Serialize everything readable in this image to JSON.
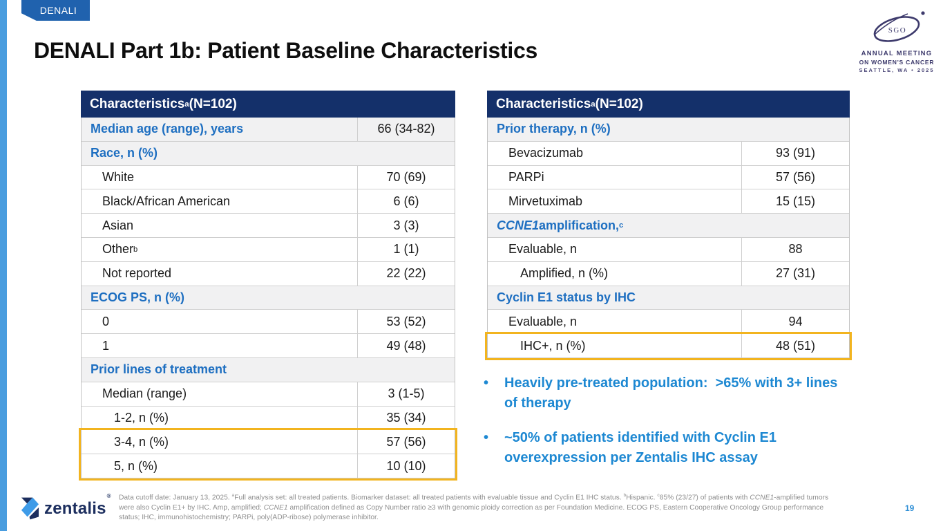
{
  "slide": {
    "program_tag": "DENALI",
    "title": "DENALI Part 1b: Patient Baseline Characteristics",
    "page_number": "19"
  },
  "logos": {
    "sgo": {
      "acronym": "SGO",
      "lines": [
        "ANNUAL MEETING",
        "ON WOMEN'S CANCER",
        "SEATTLE, WA • 2025"
      ]
    },
    "zentalis": {
      "wordmark": "zentalis",
      "registered_mark": "®"
    }
  },
  "tables": [
    {
      "id": "left",
      "header": "Characteristics^a^ (N=102)",
      "rows": [
        {
          "label": "Median age (range), years",
          "value": "66 (34-82)",
          "type": "section-kv"
        },
        {
          "label": "Race, n (%)",
          "type": "section"
        },
        {
          "label": "White",
          "value": "70 (69)",
          "indent": 1
        },
        {
          "label": "Black/African American",
          "value": "6 (6)",
          "indent": 1
        },
        {
          "label": "Asian",
          "value": "3 (3)",
          "indent": 1
        },
        {
          "label": "Other^b^",
          "value": "1 (1)",
          "indent": 1
        },
        {
          "label": "Not reported",
          "value": "22 (22)",
          "indent": 1
        },
        {
          "label": "ECOG PS, n (%)",
          "type": "section"
        },
        {
          "label": "0",
          "value": "53 (52)",
          "indent": 1
        },
        {
          "label": "1",
          "value": "49 (48)",
          "indent": 1
        },
        {
          "label": "Prior lines of treatment",
          "type": "section"
        },
        {
          "label": "Median (range)",
          "value": "3 (1-5)",
          "indent": 1
        },
        {
          "label": "1-2, n (%)",
          "value": "35 (34)",
          "indent": 2
        },
        {
          "label": "3-4, n (%)",
          "value": "57 (56)",
          "indent": 2,
          "highlight": true
        },
        {
          "label": "5, n (%)",
          "value": "10 (10)",
          "indent": 2,
          "highlight": true
        }
      ]
    },
    {
      "id": "right",
      "header": "Characteristics^a^ (N=102)",
      "rows": [
        {
          "label": "Prior therapy, n (%)",
          "type": "section"
        },
        {
          "label": "Bevacizumab",
          "value": "93 (91)",
          "indent": 1
        },
        {
          "label": "PARPi",
          "value": "57 (56)",
          "indent": 1
        },
        {
          "label": "Mirvetuximab",
          "value": "15 (15)",
          "indent": 1
        },
        {
          "label": "*CCNE1* amplification,^c^",
          "type": "section"
        },
        {
          "label": "Evaluable, n",
          "value": "88",
          "indent": 1
        },
        {
          "label": "Amplified, n (%)",
          "value": "27 (31)",
          "indent": 2
        },
        {
          "label": "Cyclin E1 status by IHC",
          "type": "section"
        },
        {
          "label": "Evaluable, n",
          "value": "94",
          "indent": 1
        },
        {
          "label": "IHC+, n (%)",
          "value": "48 (51)",
          "indent": 2,
          "highlight": true
        }
      ]
    }
  ],
  "bullets": [
    "Heavily pre-treated population:  >65% with 3+ lines of therapy",
    "~50% of patients identified with Cyclin E1 overexpression per Zentalis IHC assay"
  ],
  "footnote_lines": [
    "Data cutoff date: January 13, 2025. ^a^Full analysis set: all treated patients. Biomarker dataset: all treated patients with evaluable tissue and Cyclin E1 IHC status. ^b^Hispanic. ^c^85% (23/27) of patients with *CCNE1*-amplified tumors",
    "were also Cyclin E1+ by IHC. Amp, amplified; *CCNE1* amplification defined as Copy Number ratio ≥3 with genomic ploidy correction as per Foundation Medicine. ECOG PS, Eastern Cooperative Oncology Group performance",
    "status; IHC, immunohistochemistry; PARPi, poly(ADP-ribose) polymerase inhibitor."
  ],
  "colors": {
    "table_header_navy": "#14306a",
    "table_section_blue": "#1e6fc1",
    "bullet_blue": "#1d88d2",
    "highlight_yellow": "#f2b41f",
    "tab_blue": "#2062ae",
    "side_strip_blue": "#4a9ddf",
    "page_number_blue": "#2f8fd6",
    "sgo_purple": "#3d3a6c",
    "zentalis_navy": "#1c2e5e",
    "zentalis_light_blue": "#3e9be8"
  }
}
